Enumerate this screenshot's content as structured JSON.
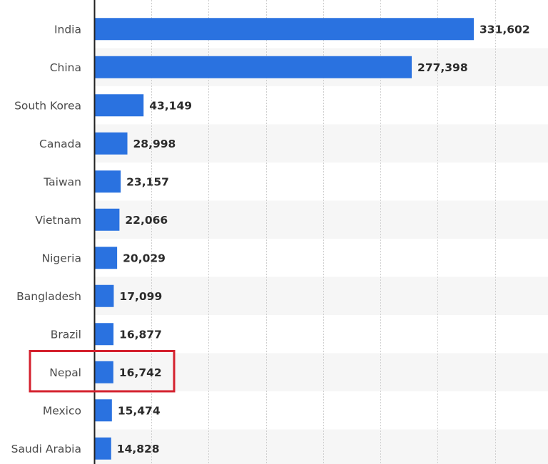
{
  "chart_data": {
    "type": "bar",
    "orientation": "horizontal",
    "categories": [
      "India",
      "China",
      "South Korea",
      "Canada",
      "Taiwan",
      "Vietnam",
      "Nigeria",
      "Bangladesh",
      "Brazil",
      "Nepal",
      "Mexico",
      "Saudi Arabia"
    ],
    "values": [
      331602,
      277398,
      43149,
      28998,
      23157,
      22066,
      20029,
      17099,
      16877,
      16742,
      15474,
      14828
    ],
    "value_labels": [
      "331,602",
      "277,398",
      "43,149",
      "28,998",
      "23,157",
      "22,066",
      "20,029",
      "17,099",
      "16,877",
      "16,742",
      "15,474",
      "14,828"
    ],
    "xlim": [
      0,
      400000
    ],
    "x_gridlines": [
      0,
      50000,
      100000,
      150000,
      200000,
      250000,
      300000,
      350000,
      400000
    ],
    "grid": true,
    "legend": "none",
    "highlighted_category": "Nepal",
    "colors": {
      "bar": "#2a72e0",
      "highlight_box": "#d4212e",
      "band": "#f6f6f6",
      "grid": "#cfcfcf",
      "axis": "#222222"
    }
  }
}
